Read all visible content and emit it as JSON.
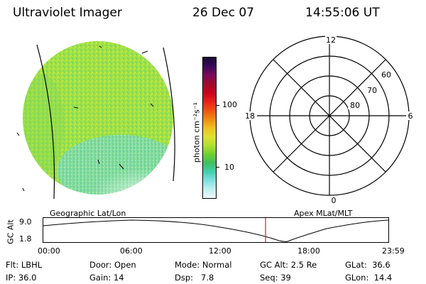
{
  "header": {
    "instrument": "Ultraviolet Imager",
    "date": "26 Dec 07",
    "time": "14:55:06 UT"
  },
  "colorbar": {
    "unit_label": "photon cm⁻²s⁻¹",
    "ticks": [
      "100",
      "10"
    ],
    "scale": "log",
    "colors_top_to_bottom": [
      "#1a0a33",
      "#3a0a5a",
      "#7a0a5a",
      "#a00a2a",
      "#c8001a",
      "#e8201a",
      "#f05010",
      "#f08a10",
      "#f0c020",
      "#e0e030",
      "#b0e030",
      "#70d030",
      "#40c060",
      "#40d0b0",
      "#80e0e0",
      "#c0f0f0",
      "#f0f8f8"
    ]
  },
  "polar_plot": {
    "labels": {
      "top": "12",
      "bottom": "0",
      "left": "18",
      "right": "6"
    },
    "ring_labels": [
      "60",
      "70",
      "80"
    ]
  },
  "panel_labels": {
    "geographic": "Geographic Lat/Lon",
    "apex": "Apex MLat/MLT"
  },
  "altitude_plot": {
    "y_label": "GC Alt",
    "y_ticks": [
      "9.0",
      "1.8"
    ],
    "x_ticks": [
      "00:00",
      "06:00",
      "12:00",
      "18:00",
      "23:59"
    ],
    "current_time_marker": "14:55",
    "marker_color": "#d02020"
  },
  "status": {
    "filter_label": "Flt:",
    "filter_value": "LBHL",
    "ip_label": "IP:",
    "ip_value": "36.0",
    "door_label": "Door:",
    "door_value": "Open",
    "gain_label": "Gain:",
    "gain_value": "14",
    "mode_label": "Mode:",
    "mode_value": "Normal",
    "dsp_label": "Dsp:",
    "dsp_value": "7.8",
    "gcalt_label": "GC Alt:",
    "gcalt_value": "2.5 Re",
    "seq_label": "Seq:",
    "seq_value": "39",
    "glat_label": "GLat:",
    "glat_value": "36.6",
    "glon_label": "GLon:",
    "glon_value": "14.4"
  }
}
